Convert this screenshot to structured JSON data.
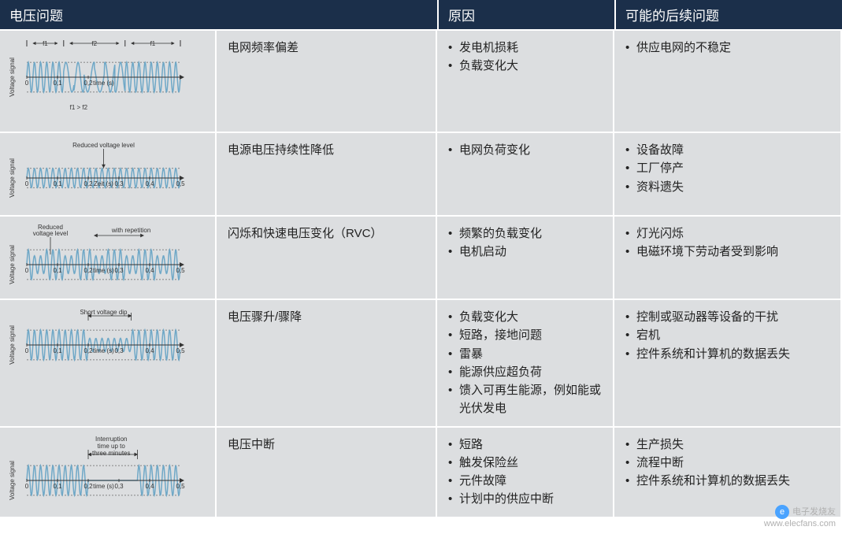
{
  "header": {
    "col1": "电压问题",
    "col2": "原因",
    "col3": "可能的后续问题"
  },
  "chart_style": {
    "wave_color": "#6fa8c7",
    "wave_width": 1.5,
    "axis_color": "#333333",
    "axis_width": 1,
    "tick_color": "#333333",
    "dotted_color": "#666666",
    "label_color": "#333333",
    "label_fontsize": 8,
    "ylabel_fontsize": 8,
    "bg": "#dcdee0",
    "xlim": [
      0,
      0.5
    ],
    "xticks": [
      0,
      0.1,
      0.2,
      0.3,
      0.4,
      0.5
    ],
    "xlabel": "time (s)",
    "xlabel_alt": "Zeit (s)",
    "ylabel": "Voltage signal",
    "amplitude_normal": 1.0,
    "amplitude_reduced": 0.65,
    "amplitude_dip": 0.45,
    "amplitude_zero": 0.0,
    "cycles_normal": 25
  },
  "rows": [
    {
      "name": "电网频率偏差",
      "causes": [
        "发电机损耗",
        "负载变化大"
      ],
      "consequences": [
        "供应电网的不稳定"
      ],
      "diagram": {
        "type": "freq_deviation",
        "region_labels": [
          "f1",
          "f2",
          "f1"
        ],
        "region_bounds": [
          0,
          0.12,
          0.32,
          0.5
        ],
        "footer_label": "f1 > f2",
        "freq_f1_cycles": 25,
        "freq_f2_cycles": 15,
        "xlabel": "time (s)",
        "xticks_shown": [
          0,
          0.1,
          0.2
        ]
      }
    },
    {
      "name": "电源电压持续性降低",
      "causes": [
        "电网负荷变化"
      ],
      "consequences": [
        "设备故障",
        "工厂停产",
        "资料遗失"
      ],
      "diagram": {
        "type": "sustained_reduce",
        "top_label": "Reduced voltage level",
        "reduced_amplitude": 0.65,
        "xlabel": "Zeit (s)",
        "xticks_shown": [
          0,
          0.1,
          0.2,
          0.3,
          0.4,
          0.5
        ]
      }
    },
    {
      "name": "闪烁和快速电压变化（RVC）",
      "causes": [
        "频繁的负载变化",
        "电机启动"
      ],
      "consequences": [
        "灯光闪烁",
        "电磁环境下劳动者受到影响"
      ],
      "diagram": {
        "type": "rvc",
        "left_label": "Reduced voltage level",
        "right_label": "with repetition",
        "dip_regions": [
          [
            0.02,
            0.06
          ],
          [
            0.12,
            0.16
          ],
          [
            0.22,
            0.26
          ],
          [
            0.32,
            0.36
          ],
          [
            0.42,
            0.46
          ]
        ],
        "dip_amplitude": 0.6,
        "arrow_span": [
          0.22,
          0.38
        ],
        "xlabel": "time (s)",
        "xticks_shown": [
          0,
          0.1,
          0.2,
          0.3,
          0.4,
          0.5
        ]
      }
    },
    {
      "name": "电压骤升/骤降",
      "causes": [
        "负载变化大",
        "短路，接地问题",
        "雷暴",
        "能源供应超负荷",
        "馈入可再生能源，例如能或光伏发电"
      ],
      "consequences": [
        "控制或驱动器等设备的干扰",
        "宕机",
        "控件系统和计算机的数据丢失"
      ],
      "diagram": {
        "type": "dip",
        "top_label": "Short voltage dip",
        "dip_region": [
          0.2,
          0.34
        ],
        "dip_amplitude": 0.45,
        "xlabel": "time (s)",
        "xticks_shown": [
          0,
          0.1,
          0.2,
          0.3,
          0.4,
          0.5
        ]
      }
    },
    {
      "name": "电压中断",
      "causes": [
        "短路",
        "触发保险丝",
        "元件故障",
        "计划中的供应中断"
      ],
      "consequences": [
        "生产损失",
        "流程中断",
        "控件系统和计算机的数据丢失"
      ],
      "diagram": {
        "type": "interruption",
        "top_labels": [
          "Interruption",
          "time up to",
          "three minutes"
        ],
        "zero_region": [
          0.2,
          0.36
        ],
        "xlabel": "time (s)",
        "xticks_shown": [
          0,
          0.1,
          0.2,
          0.3,
          0.4,
          0.5
        ]
      }
    }
  ],
  "watermark": {
    "brand": "电子发烧友",
    "url": "www.elecfans.com"
  }
}
